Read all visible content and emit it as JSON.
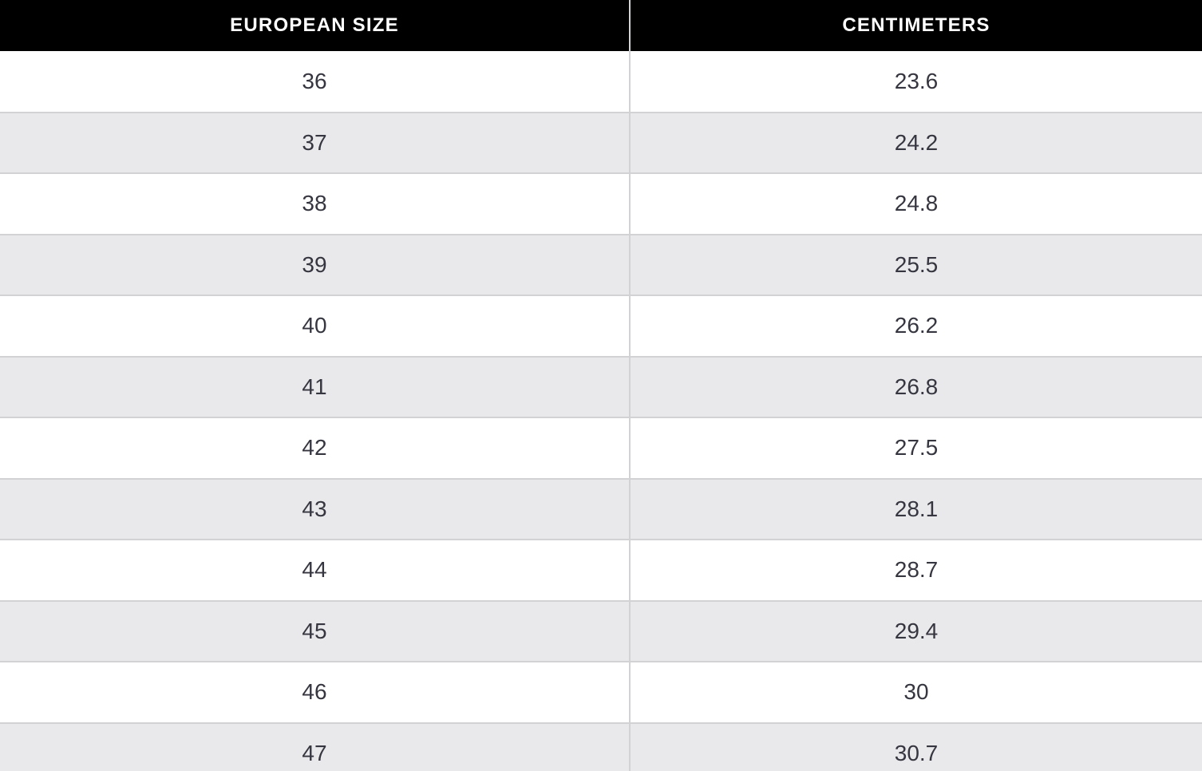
{
  "colors": {
    "header_bg": "#000000",
    "header_text": "#ffffff",
    "row_alt_bg": "#e9e9eb",
    "row_bg": "#ffffff",
    "cell_text": "#363640",
    "border": "#d2d2d5"
  },
  "table": {
    "columns": [
      {
        "key": "eu",
        "label": "EUROPEAN SIZE"
      },
      {
        "key": "cm",
        "label": "CENTIMETERS"
      }
    ],
    "rows": [
      {
        "eu": "36",
        "cm": "23.6"
      },
      {
        "eu": "37",
        "cm": "24.2"
      },
      {
        "eu": "38",
        "cm": "24.8"
      },
      {
        "eu": "39",
        "cm": "25.5"
      },
      {
        "eu": "40",
        "cm": "26.2"
      },
      {
        "eu": "41",
        "cm": "26.8"
      },
      {
        "eu": "42",
        "cm": "27.5"
      },
      {
        "eu": "43",
        "cm": "28.1"
      },
      {
        "eu": "44",
        "cm": "28.7"
      },
      {
        "eu": "45",
        "cm": "29.4"
      },
      {
        "eu": "46",
        "cm": "30"
      },
      {
        "eu": "47",
        "cm": "30.7"
      }
    ]
  },
  "chart_data": {
    "type": "table",
    "title": "",
    "columns": [
      "EUROPEAN SIZE",
      "CENTIMETERS"
    ],
    "rows": [
      [
        36,
        23.6
      ],
      [
        37,
        24.2
      ],
      [
        38,
        24.8
      ],
      [
        39,
        25.5
      ],
      [
        40,
        26.2
      ],
      [
        41,
        26.8
      ],
      [
        42,
        27.5
      ],
      [
        43,
        28.1
      ],
      [
        44,
        28.7
      ],
      [
        45,
        29.4
      ],
      [
        46,
        30
      ],
      [
        47,
        30.7
      ]
    ]
  }
}
